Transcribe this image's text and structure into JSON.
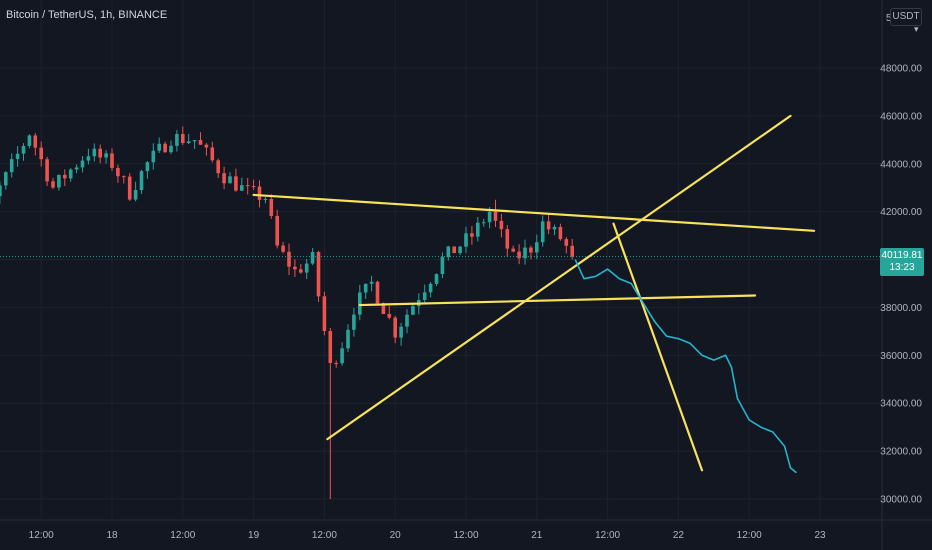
{
  "header": {
    "symbol_title": "Bitcoin / TetherUS, 1h, BINANCE",
    "currency": "USDT",
    "currency_arrow": "▾",
    "price_axis_partial": "5"
  },
  "last_price": {
    "value": "40119.81",
    "countdown": "13:23"
  },
  "colors": {
    "background": "#131722",
    "grid": "#1e222d",
    "up": "#26a69a",
    "down": "#ef5350",
    "drawing": "#f7e25c",
    "projection": "#22b5cf",
    "axis_text": "#b2b5be"
  },
  "chart_data": {
    "type": "candlestick",
    "symbol": "BTCUSDT",
    "interval": "1h",
    "ylim": [
      29500,
      50500
    ],
    "y_ticks": [
      {
        "value": 30000,
        "label": "30000.00"
      },
      {
        "value": 32000,
        "label": "32000.00"
      },
      {
        "value": 34000,
        "label": "34000.00"
      },
      {
        "value": 36000,
        "label": "36000.00"
      },
      {
        "value": 38000,
        "label": "38000.00"
      },
      {
        "value": 40000,
        "label": "40000.00"
      },
      {
        "value": 42000,
        "label": "42000.00"
      },
      {
        "value": 44000,
        "label": "44000.00"
      },
      {
        "value": 46000,
        "label": "46000.00"
      },
      {
        "value": 48000,
        "label": "48000.00"
      }
    ],
    "x_ticks": [
      {
        "t": -12,
        "label": "12:00"
      },
      {
        "t": 0,
        "label": "18"
      },
      {
        "t": 12,
        "label": "12:00"
      },
      {
        "t": 24,
        "label": "19"
      },
      {
        "t": 36,
        "label": "12:00"
      },
      {
        "t": 48,
        "label": "20"
      },
      {
        "t": 60,
        "label": "12:00"
      },
      {
        "t": 72,
        "label": "21"
      },
      {
        "t": 84,
        "label": "12:00"
      },
      {
        "t": 96,
        "label": "22"
      },
      {
        "t": 108,
        "label": "12:00"
      },
      {
        "t": 120,
        "label": "23"
      }
    ],
    "last_price": 40119.81,
    "key_closes": [
      {
        "t": -25,
        "c": 43500
      },
      {
        "t": -20,
        "c": 42500
      },
      {
        "t": -14,
        "c": 45300
      },
      {
        "t": -10,
        "c": 43000
      },
      {
        "t": -4,
        "c": 44500
      },
      {
        "t": 0,
        "c": 44000
      },
      {
        "t": 3,
        "c": 42800
      },
      {
        "t": 6,
        "c": 44000
      },
      {
        "t": 10,
        "c": 45100
      },
      {
        "t": 14,
        "c": 45000
      },
      {
        "t": 19,
        "c": 43500
      },
      {
        "t": 23,
        "c": 42800
      },
      {
        "t": 26,
        "c": 42600
      },
      {
        "t": 28,
        "c": 40500
      },
      {
        "t": 31,
        "c": 39500
      },
      {
        "t": 34,
        "c": 40000
      },
      {
        "t": 37,
        "c": 35500
      },
      {
        "t": 39,
        "c": 36500
      },
      {
        "t": 41,
        "c": 38000
      },
      {
        "t": 44,
        "c": 39000
      },
      {
        "t": 48,
        "c": 37000
      },
      {
        "t": 52,
        "c": 38500
      },
      {
        "t": 56,
        "c": 40000
      },
      {
        "t": 61,
        "c": 41000
      },
      {
        "t": 64,
        "c": 42000
      },
      {
        "t": 68,
        "c": 40000
      },
      {
        "t": 71,
        "c": 40500
      },
      {
        "t": 73,
        "c": 41500
      },
      {
        "t": 76,
        "c": 40900
      },
      {
        "t": 78,
        "c": 40120
      }
    ],
    "wick_extremes": [
      {
        "t": 37,
        "low": 30000
      },
      {
        "t": 65,
        "high": 42500
      }
    ],
    "trendlines": [
      {
        "name": "descending-resistance",
        "points": [
          [
            24,
            42700
          ],
          [
            119,
            41200
          ]
        ]
      },
      {
        "name": "ascending-support",
        "points": [
          [
            36.5,
            32500
          ],
          [
            115,
            46000
          ]
        ]
      },
      {
        "name": "horizontal-support",
        "points": [
          [
            42,
            38100
          ],
          [
            109,
            38500
          ]
        ]
      },
      {
        "name": "breakdown-projection",
        "points": [
          [
            85,
            41500
          ],
          [
            100,
            31200
          ]
        ]
      }
    ],
    "projection_path": [
      [
        78.5,
        40000
      ],
      [
        80,
        39200
      ],
      [
        82,
        39300
      ],
      [
        84,
        39600
      ],
      [
        86,
        39200
      ],
      [
        88,
        39000
      ],
      [
        90,
        38200
      ],
      [
        92,
        37400
      ],
      [
        94,
        36800
      ],
      [
        96,
        36700
      ],
      [
        98,
        36500
      ],
      [
        100,
        36000
      ],
      [
        102,
        35800
      ],
      [
        104,
        36000
      ],
      [
        105,
        35500
      ],
      [
        106,
        34200
      ],
      [
        108,
        33300
      ],
      [
        110,
        33000
      ],
      [
        112,
        32800
      ],
      [
        114,
        32200
      ],
      [
        115,
        31300
      ],
      [
        116,
        31100
      ]
    ]
  }
}
